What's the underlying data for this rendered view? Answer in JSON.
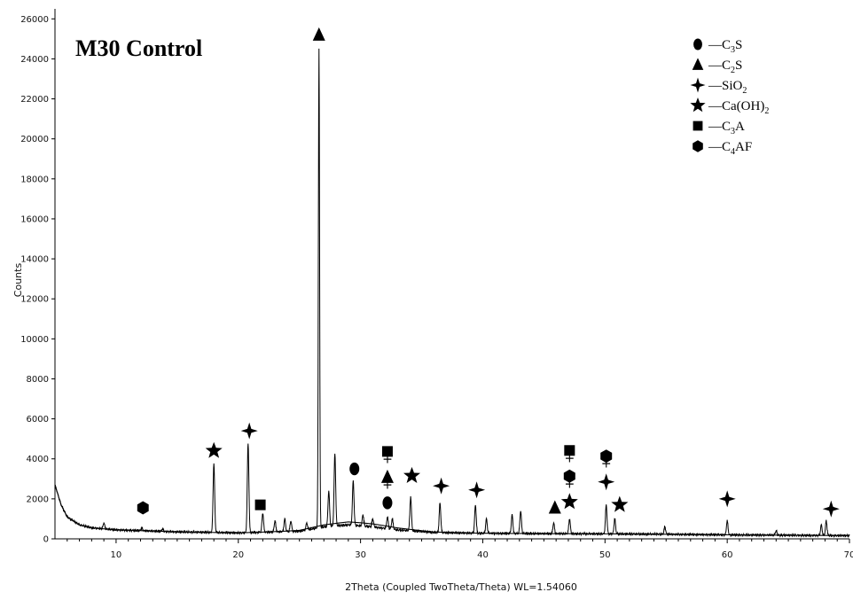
{
  "chart_data": {
    "type": "line",
    "title": "M30 Control",
    "xlabel": "2Theta (Coupled TwoTheta/Theta) WL=1.54060",
    "ylabel": "Counts",
    "xlim": [
      5,
      70
    ],
    "ylim": [
      0,
      26500
    ],
    "xticks": [
      10,
      20,
      30,
      40,
      50,
      60,
      70
    ],
    "yticks": [
      0,
      2000,
      4000,
      6000,
      8000,
      10000,
      12000,
      14000,
      16000,
      18000,
      20000,
      22000,
      24000,
      26000
    ],
    "grid": false,
    "legend_position": "top-right",
    "background_points": [
      [
        5,
        2700
      ],
      [
        5.5,
        1700
      ],
      [
        6,
        1100
      ],
      [
        7,
        700
      ],
      [
        8,
        550
      ],
      [
        10,
        450
      ],
      [
        15,
        350
      ],
      [
        20,
        300
      ],
      [
        25,
        380
      ],
      [
        27,
        600
      ],
      [
        29,
        700
      ],
      [
        31,
        600
      ],
      [
        33,
        450
      ],
      [
        36,
        320
      ],
      [
        40,
        280
      ],
      [
        45,
        260
      ],
      [
        50,
        250
      ],
      [
        55,
        230
      ],
      [
        60,
        200
      ],
      [
        65,
        180
      ],
      [
        70,
        160
      ]
    ],
    "peaks": [
      {
        "x": 9.0,
        "y": 800
      },
      {
        "x": 12.1,
        "y": 550
      },
      {
        "x": 13.8,
        "y": 500
      },
      {
        "x": 18.0,
        "y": 3800
      },
      {
        "x": 20.8,
        "y": 4800
      },
      {
        "x": 22.0,
        "y": 1300
      },
      {
        "x": 23.0,
        "y": 900
      },
      {
        "x": 23.8,
        "y": 1000
      },
      {
        "x": 24.3,
        "y": 900
      },
      {
        "x": 25.6,
        "y": 800
      },
      {
        "x": 26.6,
        "y": 24500
      },
      {
        "x": 27.4,
        "y": 2400
      },
      {
        "x": 27.9,
        "y": 4300
      },
      {
        "x": 29.4,
        "y": 2900
      },
      {
        "x": 30.2,
        "y": 1200
      },
      {
        "x": 31.0,
        "y": 1000
      },
      {
        "x": 32.2,
        "y": 1100
      },
      {
        "x": 32.6,
        "y": 1000
      },
      {
        "x": 34.1,
        "y": 2100
      },
      {
        "x": 36.5,
        "y": 1800
      },
      {
        "x": 39.4,
        "y": 1700
      },
      {
        "x": 40.3,
        "y": 1000
      },
      {
        "x": 42.4,
        "y": 1200
      },
      {
        "x": 43.1,
        "y": 1400
      },
      {
        "x": 45.8,
        "y": 800
      },
      {
        "x": 47.1,
        "y": 1000
      },
      {
        "x": 50.1,
        "y": 1700
      },
      {
        "x": 50.8,
        "y": 1000
      },
      {
        "x": 54.9,
        "y": 600
      },
      {
        "x": 60.0,
        "y": 900
      },
      {
        "x": 64.0,
        "y": 400
      },
      {
        "x": 67.7,
        "y": 700
      },
      {
        "x": 68.1,
        "y": 900
      }
    ],
    "legend": [
      {
        "symbol": "circle",
        "label": "—C",
        "sub": "3",
        "suffix": "S"
      },
      {
        "symbol": "triangle",
        "label": "—C",
        "sub": "2",
        "suffix": "S"
      },
      {
        "symbol": "sparkle",
        "label": "—SiO",
        "sub": "2",
        "suffix": ""
      },
      {
        "symbol": "star",
        "label": "—Ca(OH)",
        "sub": "2",
        "suffix": ""
      },
      {
        "symbol": "square",
        "label": "—C",
        "sub": "3",
        "suffix": "A"
      },
      {
        "symbol": "hexagon",
        "label": "—C",
        "sub": "4",
        "suffix": "AF"
      }
    ],
    "annotations": [
      {
        "x": 12.2,
        "y": 1550,
        "stack": [
          "hexagon"
        ]
      },
      {
        "x": 18.0,
        "y": 4400,
        "stack": [
          "star"
        ]
      },
      {
        "x": 20.9,
        "y": 5400,
        "stack": [
          "sparkle"
        ]
      },
      {
        "x": 21.8,
        "y": 1700,
        "stack": [
          "square"
        ]
      },
      {
        "x": 26.6,
        "y": 25200,
        "stack": [
          "triangle"
        ]
      },
      {
        "x": 29.5,
        "y": 3500,
        "stack": [
          "circle"
        ]
      },
      {
        "x": 32.2,
        "y": 1800,
        "stack": [
          "circle",
          "triangle",
          "square"
        ]
      },
      {
        "x": 34.2,
        "y": 3150,
        "stack": [
          "star"
        ]
      },
      {
        "x": 36.6,
        "y": 2650,
        "stack": [
          "sparkle"
        ]
      },
      {
        "x": 39.5,
        "y": 2450,
        "stack": [
          "sparkle"
        ]
      },
      {
        "x": 45.9,
        "y": 1550,
        "stack": [
          "triangle"
        ]
      },
      {
        "x": 47.1,
        "y": 1850,
        "stack": [
          "star",
          "hexagon",
          "square"
        ]
      },
      {
        "x": 50.1,
        "y": 2850,
        "stack": [
          "sparkle",
          "hexagon"
        ]
      },
      {
        "x": 51.2,
        "y": 1700,
        "stack": [
          "star"
        ]
      },
      {
        "x": 60.0,
        "y": 2000,
        "stack": [
          "sparkle"
        ]
      },
      {
        "x": 68.5,
        "y": 1500,
        "stack": [
          "sparkle"
        ]
      }
    ]
  }
}
